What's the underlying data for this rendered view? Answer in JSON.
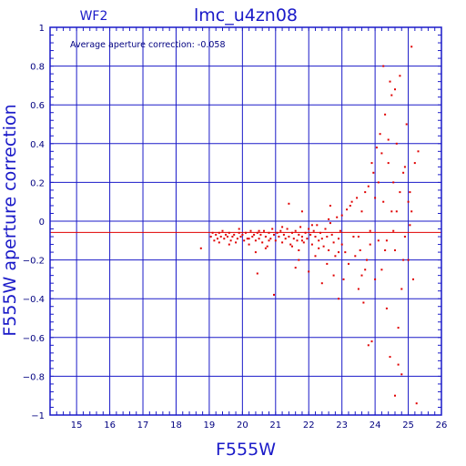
{
  "chart_data": {
    "type": "scatter",
    "title": "lmc_u4zn08",
    "panel_label": "WF2",
    "annotation": "Average aperture correction:  -0.058",
    "xlabel": "F555W",
    "ylabel": "F555W aperture correction",
    "xlim": [
      14.2,
      26.0
    ],
    "ylim": [
      -1.0,
      1.0
    ],
    "x_ticks": [
      15,
      16,
      17,
      18,
      19,
      20,
      21,
      22,
      23,
      24,
      25,
      26
    ],
    "y_ticks": [
      -1,
      -0.8,
      -0.6,
      -0.4,
      -0.2,
      0,
      0.2,
      0.4,
      0.6,
      0.8,
      1
    ],
    "y_tick_labels": [
      "−1",
      "−0.8",
      "−0.6",
      "−0.4",
      "−0.2",
      "0",
      "0.2",
      "0.4",
      "0.6",
      "0.8",
      "1"
    ],
    "grid": true,
    "reference_line": -0.058,
    "colors": {
      "axes": "#1a1ac8",
      "points": "#e00000",
      "reference_line": "#e00000",
      "text": "#000080"
    },
    "points": [
      [
        18.75,
        -0.14
      ],
      [
        19.05,
        -0.08
      ],
      [
        19.1,
        -0.06
      ],
      [
        19.15,
        -0.1
      ],
      [
        19.2,
        -0.07
      ],
      [
        19.25,
        -0.09
      ],
      [
        19.3,
        -0.06
      ],
      [
        19.35,
        -0.08
      ],
      [
        19.4,
        -0.05
      ],
      [
        19.45,
        -0.09
      ],
      [
        19.5,
        -0.07
      ],
      [
        19.55,
        -0.08
      ],
      [
        19.6,
        -0.06
      ],
      [
        19.65,
        -0.1
      ],
      [
        19.7,
        -0.08
      ],
      [
        19.75,
        -0.07
      ],
      [
        19.8,
        -0.11
      ],
      [
        19.85,
        -0.09
      ],
      [
        19.9,
        -0.06
      ],
      [
        19.95,
        -0.08
      ],
      [
        20.0,
        -0.07
      ],
      [
        20.05,
        -0.1
      ],
      [
        20.1,
        -0.06
      ],
      [
        20.15,
        -0.09
      ],
      [
        20.2,
        -0.12
      ],
      [
        20.25,
        -0.05
      ],
      [
        20.3,
        -0.08
      ],
      [
        20.35,
        -0.07
      ],
      [
        20.4,
        -0.1
      ],
      [
        20.45,
        -0.06
      ],
      [
        20.5,
        -0.09
      ],
      [
        20.55,
        -0.07
      ],
      [
        20.6,
        -0.11
      ],
      [
        20.65,
        -0.05
      ],
      [
        20.7,
        -0.08
      ],
      [
        20.75,
        -0.13
      ],
      [
        20.8,
        -0.06
      ],
      [
        20.85,
        -0.09
      ],
      [
        20.9,
        -0.04
      ],
      [
        20.95,
        -0.07
      ],
      [
        21.0,
        -0.1
      ],
      [
        21.05,
        -0.06
      ],
      [
        21.1,
        -0.08
      ],
      [
        21.15,
        -0.05
      ],
      [
        21.2,
        -0.11
      ],
      [
        21.25,
        -0.07
      ],
      [
        21.3,
        -0.09
      ],
      [
        21.35,
        -0.04
      ],
      [
        21.4,
        -0.08
      ],
      [
        21.45,
        -0.12
      ],
      [
        21.5,
        -0.06
      ],
      [
        21.55,
        -0.09
      ],
      [
        21.6,
        -0.05
      ],
      [
        21.65,
        -0.1
      ],
      [
        21.7,
        -0.07
      ],
      [
        21.75,
        -0.03
      ],
      [
        21.8,
        -0.08
      ],
      [
        21.85,
        -0.11
      ],
      [
        21.9,
        -0.06
      ],
      [
        21.95,
        -0.09
      ],
      [
        22.0,
        -0.04
      ],
      [
        22.05,
        -0.07
      ],
      [
        22.1,
        -0.12
      ],
      [
        22.15,
        -0.05
      ],
      [
        22.2,
        -0.08
      ],
      [
        22.25,
        -0.02
      ],
      [
        22.3,
        -0.1
      ],
      [
        22.35,
        -0.06
      ],
      [
        22.4,
        -0.09
      ],
      [
        22.45,
        -0.13
      ],
      [
        22.5,
        -0.04
      ],
      [
        22.55,
        -0.08
      ],
      [
        22.6,
        -0.15
      ],
      [
        22.65,
        -0.01
      ],
      [
        22.7,
        -0.07
      ],
      [
        22.75,
        -0.11
      ],
      [
        22.8,
        -0.18
      ],
      [
        22.85,
        0.02
      ],
      [
        22.9,
        -0.09
      ],
      [
        22.95,
        -0.05
      ],
      [
        19.3,
        -0.11
      ],
      [
        19.6,
        -0.12
      ],
      [
        19.9,
        -0.04
      ],
      [
        20.2,
        -0.09
      ],
      [
        20.5,
        -0.05
      ],
      [
        20.8,
        -0.1
      ],
      [
        21.2,
        -0.03
      ],
      [
        21.5,
        -0.13
      ],
      [
        21.8,
        -0.1
      ],
      [
        22.1,
        -0.02
      ],
      [
        22.3,
        -0.14
      ],
      [
        22.6,
        0.01
      ],
      [
        22.9,
        -0.16
      ],
      [
        20.4,
        -0.16
      ],
      [
        20.7,
        -0.14
      ],
      [
        21.7,
        -0.15
      ],
      [
        20.45,
        -0.27
      ],
      [
        20.95,
        -0.38
      ],
      [
        21.4,
        0.09
      ],
      [
        21.6,
        -0.24
      ],
      [
        21.7,
        -0.2
      ],
      [
        21.8,
        0.05
      ],
      [
        22.0,
        -0.26
      ],
      [
        22.2,
        -0.18
      ],
      [
        22.4,
        -0.32
      ],
      [
        22.55,
        -0.22
      ],
      [
        22.65,
        0.08
      ],
      [
        22.75,
        -0.28
      ],
      [
        22.9,
        -0.4
      ],
      [
        23.0,
        0.03
      ],
      [
        23.0,
        -0.12
      ],
      [
        23.05,
        -0.3
      ],
      [
        23.15,
        0.06
      ],
      [
        23.2,
        -0.22
      ],
      [
        23.3,
        0.1
      ],
      [
        23.35,
        -0.08
      ],
      [
        23.45,
        0.12
      ],
      [
        23.5,
        -0.35
      ],
      [
        23.55,
        -0.15
      ],
      [
        23.6,
        0.05
      ],
      [
        23.65,
        -0.42
      ],
      [
        23.7,
        0.15
      ],
      [
        23.75,
        -0.2
      ],
      [
        23.8,
        0.18
      ],
      [
        23.85,
        -0.05
      ],
      [
        23.9,
        -0.62
      ],
      [
        23.95,
        0.25
      ],
      [
        24.0,
        -0.3
      ],
      [
        24.05,
        0.38
      ],
      [
        24.1,
        -0.1
      ],
      [
        24.15,
        0.45
      ],
      [
        24.2,
        -0.25
      ],
      [
        24.25,
        0.1
      ],
      [
        24.3,
        0.55
      ],
      [
        24.35,
        -0.45
      ],
      [
        24.4,
        0.3
      ],
      [
        24.45,
        -0.7
      ],
      [
        24.5,
        0.65
      ],
      [
        24.55,
        0.2
      ],
      [
        24.6,
        -0.15
      ],
      [
        24.65,
        0.4
      ],
      [
        24.7,
        -0.55
      ],
      [
        24.75,
        0.75
      ],
      [
        24.8,
        -0.35
      ],
      [
        24.85,
        0.25
      ],
      [
        24.9,
        -0.08
      ],
      [
        24.95,
        0.5
      ],
      [
        25.0,
        -0.2
      ],
      [
        25.05,
        0.15
      ],
      [
        25.1,
        0.05
      ],
      [
        25.15,
        -0.3
      ],
      [
        25.2,
        0.3
      ],
      [
        25.25,
        -0.94
      ],
      [
        25.3,
        0.36
      ],
      [
        24.25,
        0.8
      ],
      [
        24.45,
        0.72
      ],
      [
        24.6,
        0.68
      ],
      [
        24.7,
        -0.74
      ],
      [
        24.8,
        -0.79
      ],
      [
        24.35,
        -0.1
      ],
      [
        24.55,
        -0.05
      ],
      [
        24.85,
        -0.2
      ],
      [
        23.7,
        -0.25
      ],
      [
        23.5,
        -0.08
      ],
      [
        24.0,
        0.12
      ],
      [
        24.2,
        0.35
      ],
      [
        24.4,
        0.42
      ],
      [
        24.65,
        0.05
      ],
      [
        24.9,
        0.28
      ],
      [
        25.0,
        0.1
      ],
      [
        23.9,
        0.3
      ],
      [
        24.1,
        0.2
      ],
      [
        24.3,
        -0.15
      ],
      [
        24.5,
        0.05
      ],
      [
        23.85,
        -0.12
      ],
      [
        24.75,
        0.15
      ],
      [
        25.05,
        -0.02
      ],
      [
        23.25,
        0.08
      ],
      [
        23.4,
        -0.18
      ],
      [
        23.6,
        -0.28
      ],
      [
        23.1,
        -0.16
      ],
      [
        23.8,
        -0.64
      ],
      [
        24.6,
        -0.9
      ],
      [
        25.1,
        0.9
      ]
    ]
  }
}
